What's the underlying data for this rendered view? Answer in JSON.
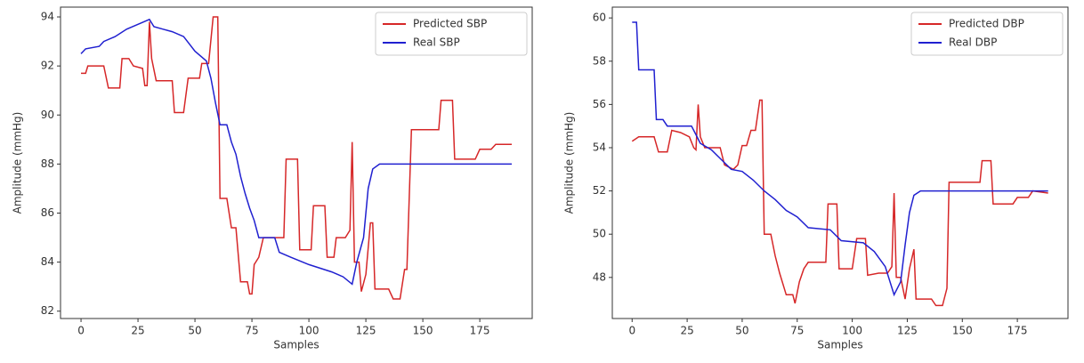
{
  "chart_data": [
    {
      "type": "line",
      "xlabel": "Samples",
      "ylabel": "Amplitude (mmHg)",
      "xlim": [
        -9,
        198
      ],
      "ylim": [
        81.7,
        94.4
      ],
      "xticks": [
        0,
        25,
        50,
        75,
        100,
        125,
        150,
        175
      ],
      "yticks": [
        82,
        84,
        86,
        88,
        90,
        92,
        94
      ],
      "legend": "upper right",
      "series": [
        {
          "name": "Predicted SBP",
          "color": "#d62728",
          "x": [
            0,
            2,
            3,
            10,
            12,
            17,
            18,
            21,
            23,
            27,
            28,
            29,
            30,
            31,
            33,
            40,
            41,
            45,
            47,
            52,
            53,
            56,
            58,
            60,
            61,
            64,
            66,
            68,
            70,
            73,
            74,
            75,
            76,
            78,
            80,
            89,
            90,
            95,
            96,
            101,
            102,
            107,
            108,
            111,
            112,
            116,
            118,
            119,
            120,
            122,
            123,
            125,
            127,
            128,
            129,
            135,
            137,
            140,
            142,
            143,
            145,
            157,
            158,
            163,
            164,
            173,
            175,
            180,
            182,
            189
          ],
          "values": [
            91.7,
            91.7,
            92,
            92,
            91.1,
            91.1,
            92.3,
            92.3,
            92,
            91.9,
            91.2,
            91.2,
            93.8,
            92.3,
            91.4,
            91.4,
            90.1,
            90.1,
            91.5,
            91.5,
            92.1,
            92.1,
            94,
            94,
            86.6,
            86.6,
            85.4,
            85.4,
            83.2,
            83.2,
            82.7,
            82.7,
            83.9,
            84.2,
            85,
            85,
            88.2,
            88.2,
            84.5,
            84.5,
            86.3,
            86.3,
            84.2,
            84.2,
            85,
            85,
            85.3,
            88.9,
            84,
            84,
            82.8,
            83.5,
            85.6,
            85.6,
            82.9,
            82.9,
            82.5,
            82.5,
            83.7,
            83.7,
            89.4,
            89.4,
            90.6,
            90.6,
            88.2,
            88.2,
            88.6,
            88.6,
            88.8,
            88.8
          ]
        },
        {
          "name": "Real SBP",
          "color": "#2020d0",
          "x": [
            0,
            2,
            8,
            10,
            15,
            20,
            25,
            30,
            32,
            36,
            40,
            45,
            50,
            55,
            57,
            59,
            61,
            64,
            66,
            68,
            70,
            72,
            74,
            76,
            78,
            85,
            87,
            92,
            100,
            110,
            115,
            119,
            121,
            124,
            126,
            128,
            131,
            189
          ],
          "values": [
            92.5,
            92.7,
            92.8,
            93,
            93.2,
            93.5,
            93.7,
            93.9,
            93.6,
            93.5,
            93.4,
            93.2,
            92.6,
            92.2,
            91.5,
            90.5,
            89.6,
            89.6,
            88.9,
            88.4,
            87.5,
            86.8,
            86.2,
            85.7,
            85,
            85,
            84.4,
            84.2,
            83.9,
            83.6,
            83.4,
            83.1,
            84,
            85,
            87,
            87.8,
            88,
            88
          ]
        }
      ]
    },
    {
      "type": "line",
      "xlabel": "Samples",
      "ylabel": "Amplitude (mmHg)",
      "xlim": [
        -9,
        198
      ],
      "ylim": [
        46.1,
        60.5
      ],
      "xticks": [
        0,
        25,
        50,
        75,
        100,
        125,
        150,
        175
      ],
      "yticks": [
        48,
        50,
        52,
        54,
        56,
        58,
        60
      ],
      "legend": "upper right",
      "series": [
        {
          "name": "Predicted DBP",
          "color": "#d62728",
          "x": [
            0,
            3,
            10,
            12,
            16,
            18,
            22,
            26,
            28,
            29,
            30,
            31,
            33,
            40,
            42,
            46,
            48,
            50,
            52,
            54,
            56,
            58,
            59,
            60,
            63,
            65,
            67,
            70,
            73,
            74,
            76,
            78,
            80,
            88,
            89,
            93,
            94,
            100,
            102,
            106,
            107,
            112,
            116,
            118,
            119,
            120,
            122,
            124,
            126,
            128,
            129,
            136,
            138,
            141,
            143,
            144,
            158,
            159,
            163,
            164,
            173,
            175,
            180,
            182,
            189
          ],
          "values": [
            54.3,
            54.5,
            54.5,
            53.8,
            53.8,
            54.8,
            54.7,
            54.5,
            54,
            53.9,
            56,
            54.5,
            54,
            54,
            53.2,
            53,
            53.2,
            54.1,
            54.1,
            54.8,
            54.8,
            56.2,
            56.2,
            50,
            50,
            49,
            48.2,
            47.2,
            47.2,
            46.8,
            47.8,
            48.4,
            48.7,
            48.7,
            51.4,
            51.4,
            48.4,
            48.4,
            49.8,
            49.8,
            48.1,
            48.2,
            48.2,
            48.5,
            51.9,
            48,
            48,
            47,
            48.4,
            49.3,
            47,
            47,
            46.7,
            46.7,
            47.5,
            52.4,
            52.4,
            53.4,
            53.4,
            51.4,
            51.4,
            51.7,
            51.7,
            52,
            51.9
          ]
        },
        {
          "name": "Real DBP",
          "color": "#2020d0",
          "x": [
            0,
            2,
            3,
            10,
            11,
            14,
            16,
            27,
            29,
            31,
            36,
            40,
            45,
            50,
            55,
            60,
            65,
            70,
            75,
            80,
            90,
            95,
            105,
            110,
            115,
            119,
            122,
            124,
            126,
            128,
            131,
            189
          ],
          "values": [
            59.8,
            59.8,
            57.6,
            57.6,
            55.3,
            55.3,
            55,
            55,
            54.6,
            54.2,
            53.9,
            53.5,
            53,
            52.9,
            52.5,
            52,
            51.6,
            51.1,
            50.8,
            50.3,
            50.2,
            49.7,
            49.6,
            49.2,
            48.5,
            47.2,
            47.8,
            49.5,
            51,
            51.8,
            52,
            52
          ]
        }
      ]
    }
  ]
}
